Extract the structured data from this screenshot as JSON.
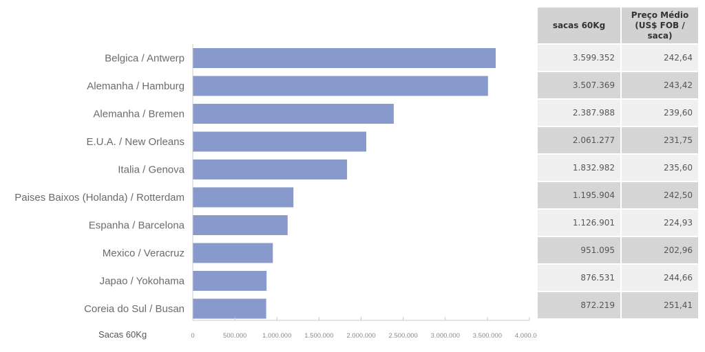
{
  "chart_data": {
    "type": "bar",
    "orientation": "horizontal",
    "categories": [
      "Belgica / Antwerp",
      "Alemanha / Hamburg",
      "Alemanha / Bremen",
      "E.U.A. / New Orleans",
      "Italia / Genova",
      "Paises Baixos (Holanda) / Rotterdam",
      "Espanha / Barcelona",
      "Mexico / Veracruz",
      "Japao / Yokohama",
      "Coreia do Sul  / Busan"
    ],
    "values": [
      3599352,
      3507369,
      2387988,
      2061277,
      1832982,
      1195904,
      1126901,
      951095,
      876531,
      872219
    ],
    "xlabel": "Sacas 60Kg",
    "xlim": [
      0,
      4000000
    ],
    "ticks": [
      "0",
      "500.000",
      "1.000.000",
      "1.500.000",
      "2.000.000",
      "2.500.000",
      "3.000.000",
      "3.500.000",
      "4.000.000"
    ],
    "bar_color": "#8899cc",
    "grid": false
  },
  "table": {
    "headers": {
      "col1": "sacas 60Kg",
      "col2_line1": "Preço Médio",
      "col2_line2": "(US$ FOB / saca)"
    },
    "rows": [
      {
        "sacas": "3.599.352",
        "preco": "242,64"
      },
      {
        "sacas": "3.507.369",
        "preco": "243,42"
      },
      {
        "sacas": "2.387.988",
        "preco": "239,60"
      },
      {
        "sacas": "2.061.277",
        "preco": "231,75"
      },
      {
        "sacas": "1.832.982",
        "preco": "235,60"
      },
      {
        "sacas": "1.195.904",
        "preco": "242,50"
      },
      {
        "sacas": "1.126.901",
        "preco": "224,93"
      },
      {
        "sacas": "951.095",
        "preco": "202,96"
      },
      {
        "sacas": "876.531",
        "preco": "244,66"
      },
      {
        "sacas": "872.219",
        "preco": "251,41"
      }
    ]
  }
}
